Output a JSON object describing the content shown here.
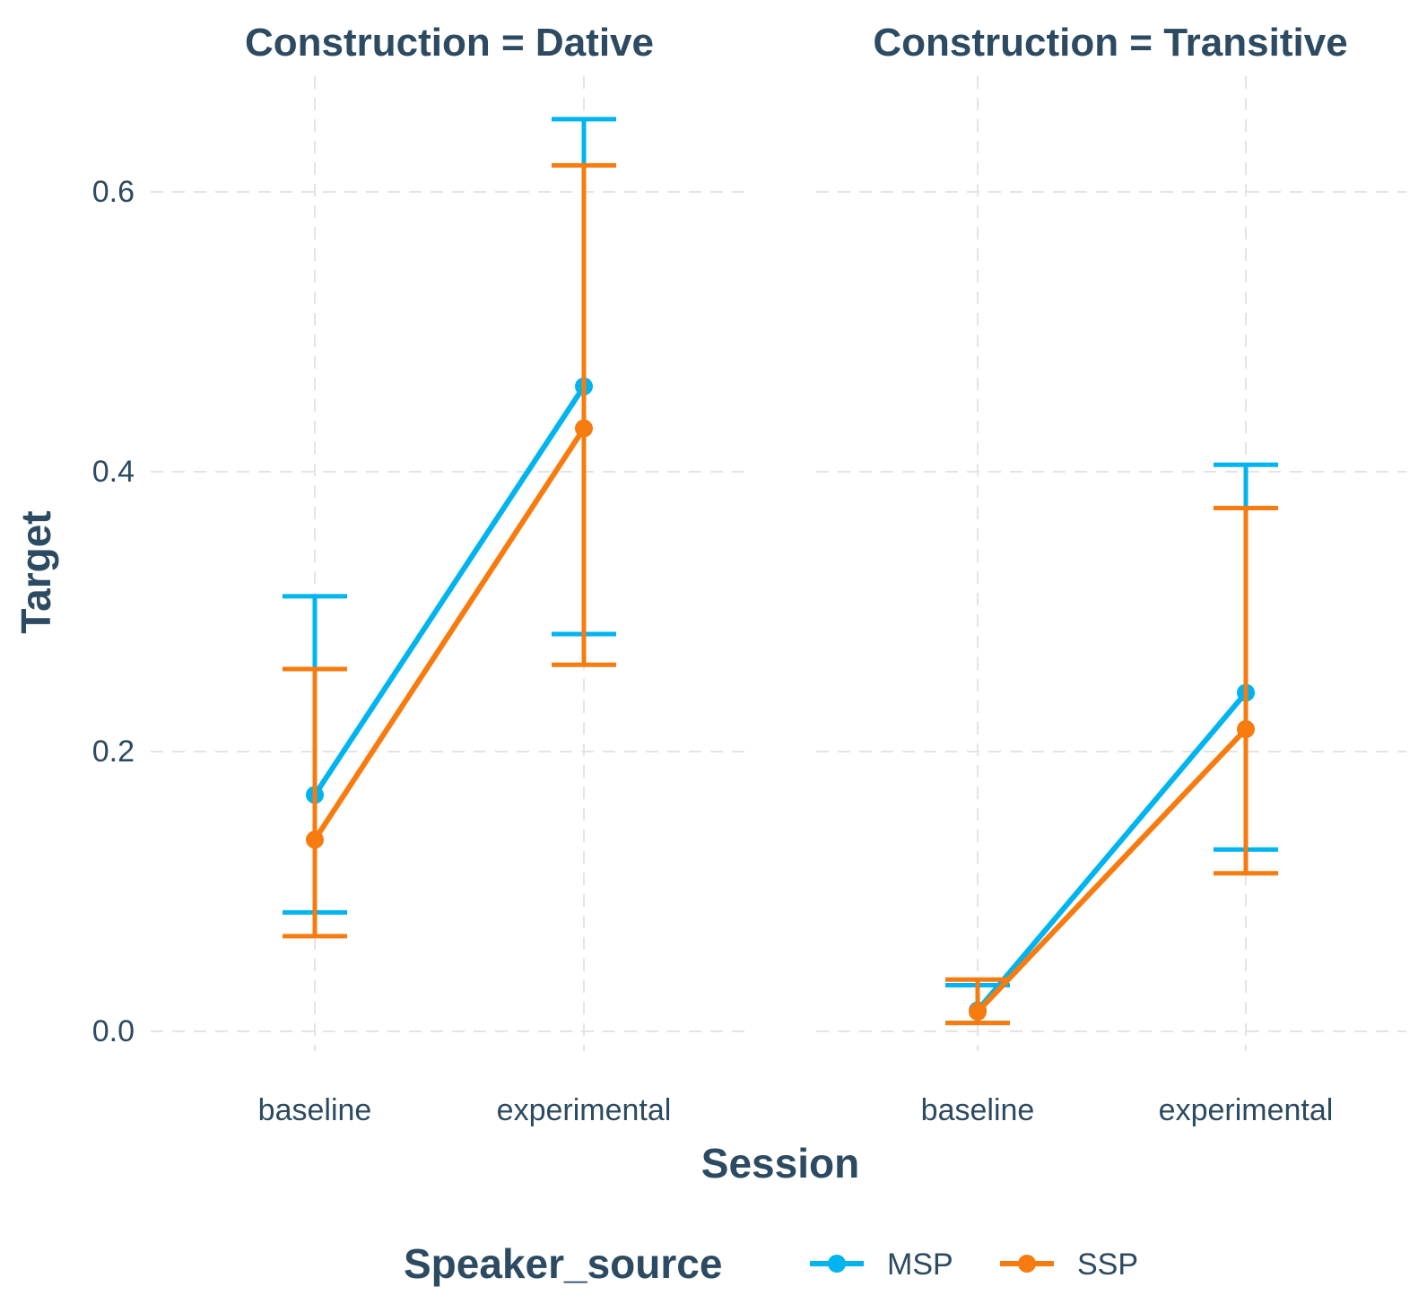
{
  "chart_data": {
    "type": "line",
    "facet_variable": "Construction",
    "x": [
      "baseline",
      "experimental"
    ],
    "xlabel": "Session",
    "ylabel": "Target",
    "ylim": [
      -0.025,
      0.67
    ],
    "yticks": [
      0.0,
      0.2,
      0.4,
      0.6
    ],
    "ytick_labels": [
      "0.0",
      "0.2",
      "0.4",
      "0.6"
    ],
    "grid": true,
    "legend": {
      "title": "Speaker_source",
      "position": "bottom",
      "entries": [
        {
          "name": "MSP",
          "color": "#00b4f0"
        },
        {
          "name": "SSP",
          "color": "#f77b0f"
        }
      ]
    },
    "panels": [
      {
        "title": "Construction = Dative",
        "series": [
          {
            "name": "MSP",
            "color": "#00b4f0",
            "values": [
              0.169,
              0.461
            ],
            "lower": [
              0.085,
              0.284
            ],
            "upper": [
              0.311,
              0.652
            ]
          },
          {
            "name": "SSP",
            "color": "#f77b0f",
            "values": [
              0.137,
              0.431
            ],
            "lower": [
              0.068,
              0.262
            ],
            "upper": [
              0.259,
              0.619
            ]
          }
        ]
      },
      {
        "title": "Construction = Transitive",
        "series": [
          {
            "name": "MSP",
            "color": "#00b4f0",
            "values": [
              0.015,
              0.242
            ],
            "lower": [
              0.006,
              0.13
            ],
            "upper": [
              0.033,
              0.405
            ]
          },
          {
            "name": "SSP",
            "color": "#f77b0f",
            "values": [
              0.014,
              0.216
            ],
            "lower": [
              0.006,
              0.113
            ],
            "upper": [
              0.037,
              0.374
            ]
          }
        ]
      }
    ]
  }
}
